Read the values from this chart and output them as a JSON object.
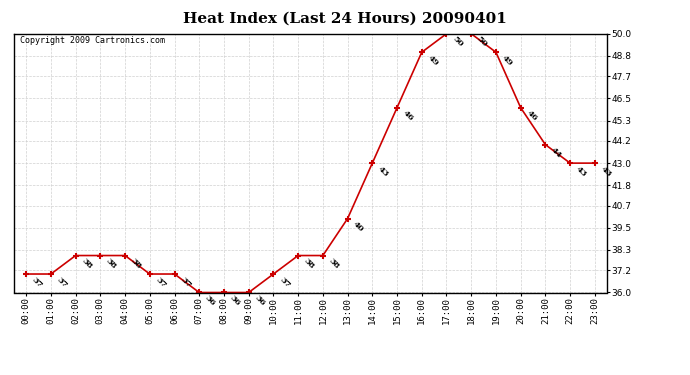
{
  "title": "Heat Index (Last 24 Hours) 20090401",
  "copyright_text": "Copyright 2009 Cartronics.com",
  "hours": [
    0,
    1,
    2,
    3,
    4,
    5,
    6,
    7,
    8,
    9,
    10,
    11,
    12,
    13,
    14,
    15,
    16,
    17,
    18,
    19,
    20,
    21,
    22,
    23
  ],
  "values": [
    37,
    37,
    38,
    38,
    38,
    37,
    37,
    36,
    36,
    36,
    37,
    38,
    38,
    40,
    43,
    46,
    49,
    50,
    50,
    49,
    46,
    44,
    43,
    43
  ],
  "ylim": [
    36.0,
    50.0
  ],
  "yticks": [
    36.0,
    37.2,
    38.3,
    39.5,
    40.7,
    41.8,
    43.0,
    44.2,
    45.3,
    46.5,
    47.7,
    48.8,
    50.0
  ],
  "line_color": "#cc0000",
  "marker_color": "#cc0000",
  "bg_color": "#ffffff",
  "grid_color": "#cccccc",
  "title_fontsize": 11,
  "label_fontsize": 6,
  "copyright_fontsize": 6,
  "tick_fontsize": 6.5
}
